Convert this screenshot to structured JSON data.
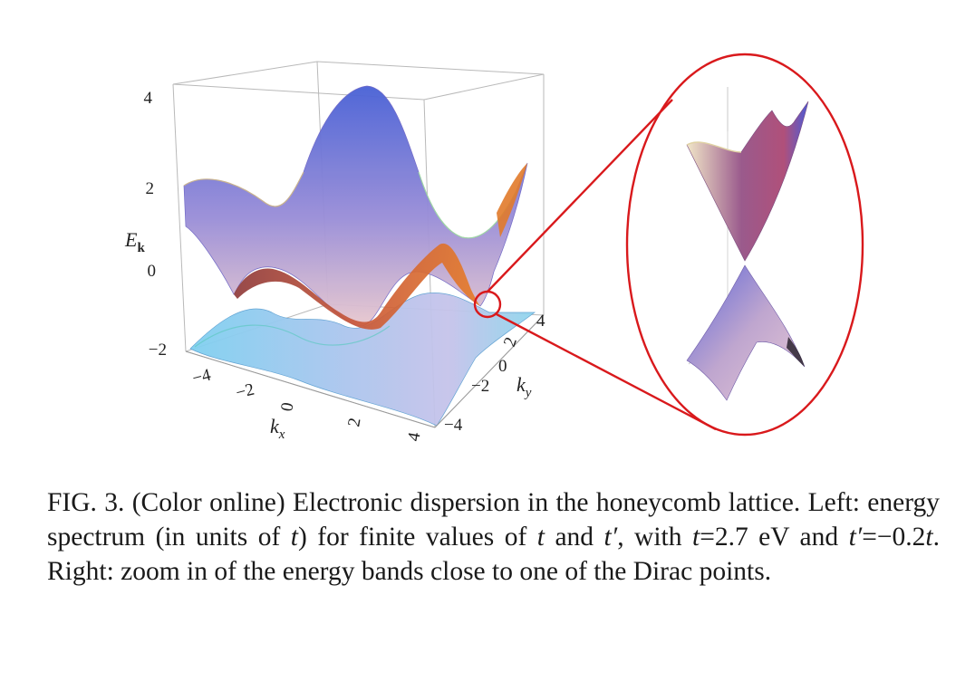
{
  "figure": {
    "z_ticks": [
      "4",
      "2",
      "0",
      "−2"
    ],
    "x_ticks": [
      "−4",
      "−2",
      "0",
      "2",
      "4"
    ],
    "y_ticks": [
      "4",
      "2",
      "0",
      "−2",
      "−4"
    ],
    "z_label": {
      "main": "E",
      "sub": "k"
    },
    "x_label": {
      "main": "k",
      "sub": "x"
    },
    "y_label": {
      "main": "k",
      "sub": "y"
    },
    "zoom_outline_color": "#d9191c"
  },
  "caption": {
    "lead": "FIG. 3.",
    "text_1": " (Color online) Electronic dispersion in the honeycomb lattice. Left: energy spectrum (in units of ",
    "t1": "t",
    "text_2": ") for finite values of ",
    "t2": "t",
    "text_3": " and ",
    "t3": "t′",
    "text_4": ", with ",
    "t4": "t",
    "text_5": "=2.7 eV and ",
    "t5": "t′",
    "text_6": "=−0.2",
    "t6": "t",
    "text_7": ". Right: zoom in of the energy bands close to one of the Dirac points."
  }
}
